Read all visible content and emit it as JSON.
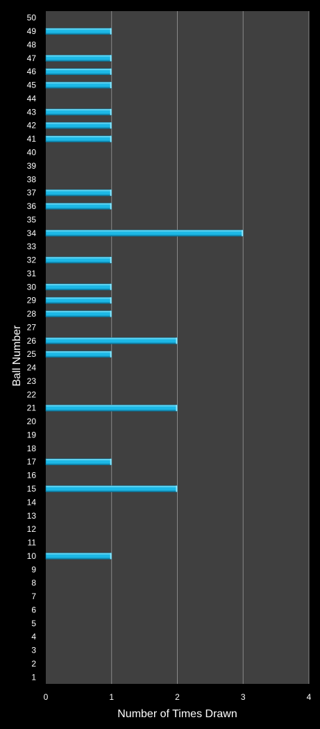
{
  "chart_data": {
    "type": "bar",
    "orientation": "horizontal",
    "title": "",
    "xlabel": "Number of Times Drawn",
    "ylabel": "Ball Number",
    "xlim": [
      0,
      4
    ],
    "x_ticks": [
      "0",
      "1",
      "2",
      "3",
      "4"
    ],
    "grid": "vertical",
    "legend": "none",
    "categories": [
      "1",
      "2",
      "3",
      "4",
      "5",
      "6",
      "7",
      "8",
      "9",
      "10",
      "11",
      "12",
      "13",
      "14",
      "15",
      "16",
      "17",
      "18",
      "19",
      "20",
      "21",
      "22",
      "23",
      "24",
      "25",
      "26",
      "27",
      "28",
      "29",
      "30",
      "31",
      "32",
      "33",
      "34",
      "35",
      "36",
      "37",
      "38",
      "39",
      "40",
      "41",
      "42",
      "43",
      "44",
      "45",
      "46",
      "47",
      "48",
      "49",
      "50"
    ],
    "values": [
      0,
      0,
      0,
      0,
      0,
      0,
      0,
      0,
      0,
      1,
      0,
      0,
      0,
      0,
      2,
      0,
      1,
      0,
      0,
      0,
      2,
      0,
      0,
      0,
      1,
      2,
      0,
      1,
      1,
      1,
      0,
      1,
      0,
      3,
      0,
      1,
      1,
      0,
      0,
      0,
      1,
      1,
      1,
      0,
      1,
      1,
      1,
      0,
      1,
      0
    ],
    "colors": {
      "page_background": "#000000",
      "plot_background": "#404040",
      "gridline": "#8a8a8a",
      "bar_light": "#8ee7fb",
      "bar_main": "#1cb8e6",
      "bar_dark": "#0a6f93",
      "text": "#ffffff"
    }
  }
}
